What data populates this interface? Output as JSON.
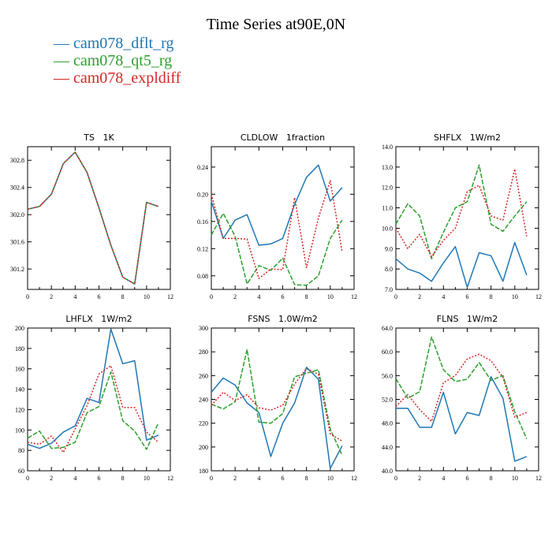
{
  "title": "Time Series at90E,0N",
  "legend": [
    {
      "label": "— cam078_dflt_rg",
      "color": "#1f77b4"
    },
    {
      "label": "— cam078_qt5_rg",
      "color": "#2ca02c"
    },
    {
      "label": "— cam078_expldiff",
      "color": "#d62728"
    }
  ],
  "series_names": [
    "cam078_dflt_rg",
    "cam078_qt5_rg",
    "cam078_expldiff"
  ],
  "chart_data": [
    {
      "type": "line",
      "title": "TS   1K",
      "x": [
        0,
        1,
        2,
        3,
        4,
        5,
        6,
        7,
        8,
        9,
        10,
        11
      ],
      "xlim": [
        0,
        12
      ],
      "xticks": [
        0,
        2,
        4,
        6,
        8,
        10,
        12
      ],
      "ylim": [
        300.9,
        303.0
      ],
      "yticks": [
        301.2,
        301.6,
        302.0,
        302.4,
        302.8
      ],
      "ytick_labels": [
        "301.2",
        "301.6",
        "302.0",
        "302.4",
        "302.8"
      ],
      "xtick_labels": [
        "0",
        "2",
        "4",
        "6",
        "8",
        "10",
        "12"
      ],
      "series": [
        {
          "name": "cam078_dflt_rg",
          "values": [
            302.08,
            302.12,
            302.3,
            302.75,
            302.92,
            302.62,
            302.1,
            301.55,
            301.08,
            300.98,
            302.18,
            302.12
          ]
        },
        {
          "name": "cam078_qt5_rg",
          "values": [
            302.08,
            302.12,
            302.3,
            302.75,
            302.92,
            302.62,
            302.1,
            301.55,
            301.08,
            300.98,
            302.18,
            302.12
          ]
        },
        {
          "name": "cam078_expldiff",
          "values": [
            302.08,
            302.12,
            302.3,
            302.75,
            302.92,
            302.62,
            302.1,
            301.55,
            301.08,
            300.98,
            302.18,
            302.12
          ]
        }
      ]
    },
    {
      "type": "line",
      "title": "CLDLOW   1fraction",
      "x": [
        0,
        1,
        2,
        3,
        4,
        5,
        6,
        7,
        8,
        9,
        10,
        11
      ],
      "xlim": [
        0,
        12
      ],
      "xticks": [
        0,
        2,
        4,
        6,
        8,
        10,
        12
      ],
      "ylim": [
        0.06,
        0.27
      ],
      "yticks": [
        0.08,
        0.12,
        0.16,
        0.2,
        0.24
      ],
      "ytick_labels": [
        "0.08",
        "0.12",
        "0.16",
        "0.20",
        "0.24"
      ],
      "xtick_labels": [
        "0",
        "2",
        "4",
        "6",
        "8",
        "10",
        "12"
      ],
      "series": [
        {
          "name": "cam078_dflt_rg",
          "values": [
            0.19,
            0.135,
            0.162,
            0.17,
            0.125,
            0.127,
            0.135,
            0.185,
            0.225,
            0.243,
            0.19,
            0.21
          ]
        },
        {
          "name": "cam078_qt5_rg",
          "values": [
            0.14,
            0.172,
            0.138,
            0.068,
            0.095,
            0.088,
            0.106,
            0.067,
            0.066,
            0.08,
            0.135,
            0.162
          ]
        },
        {
          "name": "cam078_expldiff",
          "values": [
            0.2,
            0.135,
            0.135,
            0.134,
            0.076,
            0.09,
            0.089,
            0.195,
            0.092,
            0.165,
            0.22,
            0.115
          ]
        }
      ]
    },
    {
      "type": "line",
      "title": "SHFLX   1W/m2",
      "x": [
        0,
        1,
        2,
        3,
        4,
        5,
        6,
        7,
        8,
        9,
        10,
        11
      ],
      "xlim": [
        0,
        12
      ],
      "xticks": [
        0,
        2,
        4,
        6,
        8,
        10,
        12
      ],
      "ylim": [
        7.0,
        14.0
      ],
      "yticks": [
        7.0,
        8.0,
        9.0,
        10.0,
        11.0,
        12.0,
        13.0,
        14.0
      ],
      "ytick_labels": [
        "7.0",
        "8.0",
        "9.0",
        "10.0",
        "11.0",
        "12.0",
        "13.0",
        "14.0"
      ],
      "xtick_labels": [
        "0",
        "2",
        "4",
        "6",
        "8",
        "10",
        "12"
      ],
      "series": [
        {
          "name": "cam078_dflt_rg",
          "values": [
            8.5,
            8.0,
            7.8,
            7.4,
            8.3,
            9.1,
            7.1,
            8.8,
            8.65,
            7.4,
            9.3,
            7.7
          ]
        },
        {
          "name": "cam078_qt5_rg",
          "values": [
            10.2,
            11.2,
            10.6,
            8.5,
            9.8,
            11.0,
            11.3,
            13.1,
            10.2,
            9.85,
            10.6,
            11.3
          ]
        },
        {
          "name": "cam078_expldiff",
          "values": [
            10.0,
            9.0,
            9.7,
            8.6,
            9.4,
            10.0,
            11.8,
            12.1,
            10.6,
            10.4,
            12.9,
            9.6
          ]
        }
      ]
    },
    {
      "type": "line",
      "title": "LHFLX   1W/m2",
      "x": [
        0,
        1,
        2,
        3,
        4,
        5,
        6,
        7,
        8,
        9,
        10,
        11
      ],
      "xlim": [
        0,
        12
      ],
      "xticks": [
        0,
        2,
        4,
        6,
        8,
        10,
        12
      ],
      "ylim": [
        60,
        200
      ],
      "yticks": [
        60,
        80,
        100,
        120,
        140,
        160,
        180,
        200
      ],
      "ytick_labels": [
        "60",
        "80",
        "100",
        "120",
        "140",
        "160",
        "180",
        "200"
      ],
      "xtick_labels": [
        "0",
        "2",
        "4",
        "6",
        "8",
        "10",
        "12"
      ],
      "series": [
        {
          "name": "cam078_dflt_rg",
          "values": [
            86,
            82,
            87,
            98,
            104,
            131,
            127,
            199,
            165,
            168,
            90,
            95
          ]
        },
        {
          "name": "cam078_qt5_rg",
          "values": [
            92,
            99,
            82,
            83,
            88,
            117,
            123,
            157,
            109,
            99,
            81,
            107
          ]
        },
        {
          "name": "cam078_expldiff",
          "values": [
            88,
            86,
            94,
            78,
            101,
            124,
            155,
            163,
            122,
            122,
            98,
            88
          ]
        }
      ]
    },
    {
      "type": "line",
      "title": "FSNS   1.0W/m2",
      "x": [
        0,
        1,
        2,
        3,
        4,
        5,
        6,
        7,
        8,
        9,
        10,
        11
      ],
      "xlim": [
        0,
        12
      ],
      "xticks": [
        0,
        2,
        4,
        6,
        8,
        10,
        12
      ],
      "ylim": [
        180,
        300
      ],
      "yticks": [
        180,
        200,
        220,
        240,
        260,
        280,
        300
      ],
      "ytick_labels": [
        "180",
        "200",
        "220",
        "240",
        "260",
        "280",
        "300"
      ],
      "xtick_labels": [
        "0",
        "2",
        "4",
        "6",
        "8",
        "10",
        "12"
      ],
      "series": [
        {
          "name": "cam078_dflt_rg",
          "values": [
            246,
            258,
            252,
            237,
            229,
            192,
            220,
            237,
            267,
            257,
            182,
            201
          ]
        },
        {
          "name": "cam078_qt5_rg",
          "values": [
            236,
            232,
            238,
            282,
            221,
            220,
            228,
            259,
            262,
            265,
            215,
            193
          ]
        },
        {
          "name": "cam078_expldiff",
          "values": [
            235,
            246,
            239,
            244,
            233,
            231,
            235,
            253,
            266,
            261,
            211,
            205
          ]
        }
      ]
    },
    {
      "type": "line",
      "title": "FLNS   1W/m2",
      "x": [
        0,
        1,
        2,
        3,
        4,
        5,
        6,
        7,
        8,
        9,
        10,
        11
      ],
      "xlim": [
        0,
        12
      ],
      "xticks": [
        0,
        2,
        4,
        6,
        8,
        10,
        12
      ],
      "ylim": [
        40.0,
        64.0
      ],
      "yticks": [
        40.0,
        44.0,
        48.0,
        52.0,
        56.0,
        60.0,
        64.0
      ],
      "ytick_labels": [
        "40.0",
        "44.0",
        "48.0",
        "52.0",
        "56.0",
        "60.0",
        "64.0"
      ],
      "xtick_labels": [
        "0",
        "2",
        "4",
        "6",
        "8",
        "10",
        "12"
      ],
      "series": [
        {
          "name": "cam078_dflt_rg",
          "values": [
            50.5,
            50.5,
            47.3,
            47.3,
            53.2,
            46.2,
            49.8,
            49.3,
            55.8,
            52.2,
            41.6,
            42.4
          ]
        },
        {
          "name": "cam078_qt5_rg",
          "values": [
            55.5,
            52.2,
            53.3,
            62.5,
            57.0,
            55.0,
            55.4,
            58.2,
            55.2,
            56.0,
            49.9,
            45.4
          ]
        },
        {
          "name": "cam078_expldiff",
          "values": [
            50.8,
            52.8,
            50.3,
            48.3,
            54.8,
            56.0,
            58.8,
            59.6,
            58.5,
            55.7,
            49.0,
            49.8
          ]
        }
      ]
    }
  ],
  "colors": [
    "#1f77b4",
    "#2ca02c",
    "#d62728"
  ],
  "dashes": [
    "",
    "6,2",
    "2,2"
  ]
}
